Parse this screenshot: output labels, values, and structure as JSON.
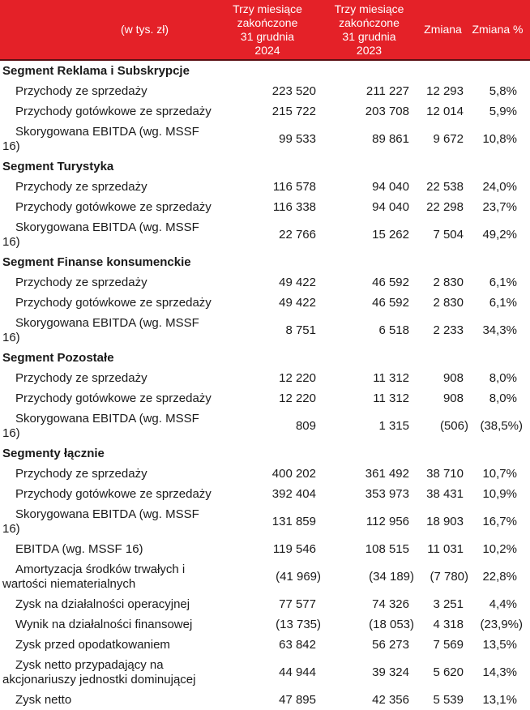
{
  "colors": {
    "header_bg": "#E42128",
    "header_border": "#5A1014",
    "text": "#1A1A1A"
  },
  "table": {
    "unit_label": "(w tys. zł)",
    "columns": [
      "Trzy miesiące\nzakończone\n31 grudnia\n2024",
      "Trzy miesiące\nzakończone\n31 grudnia\n2023",
      "Zmiana",
      "Zmiana %"
    ],
    "sections": [
      {
        "title": "Segment Reklama i Subskrypcje",
        "rows": [
          {
            "label": "Przychody ze sprzedaży",
            "values": [
              "223 520",
              "211 227",
              "12 293",
              "5,8%"
            ]
          },
          {
            "label": "Przychody gotówkowe ze sprzedaży",
            "values": [
              "215 722",
              "203 708",
              "12 014",
              "5,9%"
            ]
          },
          {
            "label": "Skorygowana EBITDA (wg. MSSF 16)",
            "values": [
              "99 533",
              "89 861",
              "9 672",
              "10,8%"
            ]
          }
        ]
      },
      {
        "title": "Segment Turystyka",
        "rows": [
          {
            "label": "Przychody ze sprzedaży",
            "values": [
              "116 578",
              "94 040",
              "22 538",
              "24,0%"
            ]
          },
          {
            "label": "Przychody gotówkowe ze sprzedaży",
            "values": [
              "116 338",
              "94 040",
              "22 298",
              "23,7%"
            ]
          },
          {
            "label": "Skorygowana EBITDA (wg. MSSF 16)",
            "values": [
              "22 766",
              "15 262",
              "7 504",
              "49,2%"
            ]
          }
        ]
      },
      {
        "title": "Segment Finanse konsumenckie",
        "rows": [
          {
            "label": "Przychody ze sprzedaży",
            "values": [
              "49 422",
              "46 592",
              "2 830",
              "6,1%"
            ]
          },
          {
            "label": "Przychody gotówkowe ze sprzedaży",
            "values": [
              "49 422",
              "46 592",
              "2 830",
              "6,1%"
            ]
          },
          {
            "label": "Skorygowana EBITDA (wg. MSSF 16)",
            "values": [
              "8 751",
              "6 518",
              "2 233",
              "34,3%"
            ]
          }
        ]
      },
      {
        "title": "Segment Pozostałe",
        "rows": [
          {
            "label": "Przychody ze sprzedaży",
            "values": [
              "12 220",
              "11 312",
              "908",
              "8,0%"
            ]
          },
          {
            "label": "Przychody gotówkowe ze sprzedaży",
            "values": [
              "12 220",
              "11 312",
              "908",
              "8,0%"
            ]
          },
          {
            "label": "Skorygowana EBITDA (wg. MSSF 16)",
            "values": [
              "809",
              "1 315",
              "(506)",
              "(38,5%)"
            ]
          }
        ]
      },
      {
        "title": "Segmenty łącznie",
        "rows": [
          {
            "label": "Przychody ze sprzedaży",
            "values": [
              "400 202",
              "361 492",
              "38 710",
              "10,7%"
            ]
          },
          {
            "label": "Przychody gotówkowe ze sprzedaży",
            "values": [
              "392 404",
              "353 973",
              "38 431",
              "10,9%"
            ]
          },
          {
            "label": "Skorygowana EBITDA (wg. MSSF 16)",
            "values": [
              "131 859",
              "112 956",
              "18 903",
              "16,7%"
            ]
          },
          {
            "label": "EBITDA (wg. MSSF 16)",
            "values": [
              "119 546",
              "108 515",
              "11 031",
              "10,2%"
            ]
          },
          {
            "label": "Amortyzacja środków trwałych i wartości niematerialnych",
            "values": [
              "(41 969)",
              "(34 189)",
              "(7 780)",
              "22,8%"
            ]
          },
          {
            "label": "Zysk na działalności operacyjnej",
            "values": [
              "77 577",
              "74 326",
              "3 251",
              "4,4%"
            ]
          },
          {
            "label": "Wynik na działalności finansowej",
            "values": [
              "(13 735)",
              "(18 053)",
              "4 318",
              "(23,9%)"
            ]
          },
          {
            "label": "Zysk przed opodatkowaniem",
            "values": [
              "63 842",
              "56 273",
              "7 569",
              "13,5%"
            ]
          },
          {
            "label": "Zysk netto przypadający na akcjonariuszy jednostki dominującej",
            "values": [
              "44 944",
              "39 324",
              "5 620",
              "14,3%"
            ]
          },
          {
            "label": "Zysk netto",
            "values": [
              "47 895",
              "42 356",
              "5 539",
              "13,1%"
            ]
          }
        ]
      }
    ]
  }
}
